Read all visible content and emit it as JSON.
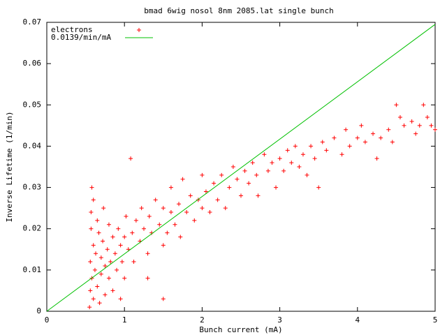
{
  "chart_data": {
    "type": "scatter",
    "title": "bmad 6wig nosol 8nm 2085.lat single bunch",
    "x_label": "Bunch current (mA)",
    "y_label": "Inverse Lifetime (1/min)",
    "xlim": [
      0,
      5
    ],
    "ylim": [
      0,
      0.07
    ],
    "xticks": [
      0,
      1,
      2,
      3,
      4,
      5
    ],
    "yticks": [
      0,
      0.01,
      0.02,
      0.03,
      0.04,
      0.05,
      0.06,
      0.07
    ],
    "legend": "top left",
    "series": [
      {
        "name": "electrons",
        "color": "#ff0000",
        "marker": "+",
        "x": [
          0.55,
          0.56,
          0.56,
          0.57,
          0.57,
          0.58,
          0.58,
          0.6,
          0.6,
          0.62,
          0.63,
          0.65,
          0.65,
          0.67,
          0.68,
          0.7,
          0.7,
          0.72,
          0.73,
          0.75,
          0.75,
          0.78,
          0.8,
          0.8,
          0.82,
          0.85,
          0.85,
          0.88,
          0.9,
          0.92,
          0.95,
          0.97,
          1.0,
          1.0,
          1.02,
          1.05,
          1.08,
          1.1,
          1.12,
          1.15,
          1.2,
          1.22,
          1.25,
          1.3,
          1.32,
          1.35,
          1.4,
          1.45,
          1.5,
          1.5,
          1.55,
          1.6,
          1.6,
          1.65,
          1.7,
          1.72,
          1.75,
          1.8,
          1.85,
          1.9,
          1.95,
          2.0,
          2.0,
          2.05,
          2.1,
          2.15,
          2.2,
          2.25,
          2.3,
          2.35,
          2.4,
          2.45,
          2.5,
          2.55,
          2.6,
          2.65,
          2.7,
          2.72,
          2.8,
          2.85,
          2.9,
          2.95,
          3.0,
          3.05,
          3.1,
          3.15,
          3.2,
          3.25,
          3.3,
          3.35,
          3.4,
          3.45,
          3.5,
          3.55,
          3.6,
          3.7,
          3.8,
          3.85,
          3.9,
          4.0,
          4.05,
          4.1,
          4.2,
          4.25,
          4.3,
          4.4,
          4.45,
          4.5,
          4.55,
          4.6,
          4.7,
          4.75,
          4.8,
          4.85,
          4.9,
          4.95,
          5.0,
          1.5,
          0.95,
          1.3,
          0.6
        ],
        "values": [
          0.001,
          0.005,
          0.012,
          0.02,
          0.024,
          0.03,
          0.008,
          0.016,
          0.003,
          0.01,
          0.014,
          0.022,
          0.006,
          0.019,
          0.002,
          0.013,
          0.009,
          0.017,
          0.025,
          0.011,
          0.004,
          0.015,
          0.021,
          0.008,
          0.012,
          0.018,
          0.005,
          0.014,
          0.01,
          0.02,
          0.016,
          0.012,
          0.018,
          0.008,
          0.023,
          0.015,
          0.037,
          0.019,
          0.012,
          0.022,
          0.017,
          0.025,
          0.02,
          0.014,
          0.023,
          0.019,
          0.027,
          0.021,
          0.016,
          0.025,
          0.019,
          0.024,
          0.03,
          0.021,
          0.026,
          0.018,
          0.032,
          0.024,
          0.028,
          0.022,
          0.027,
          0.025,
          0.033,
          0.029,
          0.024,
          0.031,
          0.027,
          0.033,
          0.025,
          0.03,
          0.035,
          0.032,
          0.028,
          0.034,
          0.031,
          0.036,
          0.033,
          0.028,
          0.038,
          0.034,
          0.036,
          0.03,
          0.037,
          0.034,
          0.039,
          0.036,
          0.04,
          0.035,
          0.038,
          0.033,
          0.04,
          0.037,
          0.03,
          0.041,
          0.039,
          0.042,
          0.038,
          0.044,
          0.04,
          0.042,
          0.045,
          0.041,
          0.043,
          0.037,
          0.042,
          0.044,
          0.041,
          0.05,
          0.047,
          0.045,
          0.046,
          0.043,
          0.045,
          0.05,
          0.047,
          0.045,
          0.044,
          0.003,
          0.003,
          0.008,
          0.027
        ]
      },
      {
        "name": "0.0139/min/mA",
        "color": "#00c000",
        "type": "line",
        "x": [
          0,
          5
        ],
        "values": [
          0,
          0.0695
        ]
      }
    ]
  }
}
